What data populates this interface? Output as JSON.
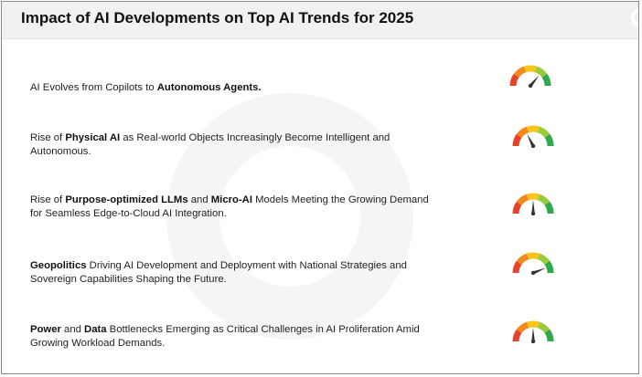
{
  "title": "Impact of AI Developments on Top AI Trends for 2025",
  "trends": [
    {
      "parts": [
        {
          "text": "AI Evolves from Copilots to ",
          "bold": false
        },
        {
          "text": "Autonomous Agents.",
          "bold": true
        }
      ],
      "gauge_level": 0.72
    },
    {
      "parts": [
        {
          "text": "Rise of ",
          "bold": false
        },
        {
          "text": "Physical AI",
          "bold": true
        },
        {
          "text": " as Real-world Objects Increasingly Become Intelligent and Autonomous.",
          "bold": false
        }
      ],
      "gauge_level": 0.35
    },
    {
      "parts": [
        {
          "text": "Rise of ",
          "bold": false
        },
        {
          "text": "Purpose-optimized LLMs",
          "bold": true
        },
        {
          "text": " and ",
          "bold": false
        },
        {
          "text": "Micro-AI",
          "bold": true
        },
        {
          "text": " Models Meeting the Growing Demand for Seamless Edge-to-Cloud AI Integration.",
          "bold": false
        }
      ],
      "gauge_level": 0.5
    },
    {
      "parts": [
        {
          "text": "Geopolitics",
          "bold": true
        },
        {
          "text": " Driving AI Development and Deployment with National Strategies and Sovereign Capabilities Shaping the Future.",
          "bold": false
        }
      ],
      "gauge_level": 0.88
    },
    {
      "parts": [
        {
          "text": "Power",
          "bold": true
        },
        {
          "text": " and ",
          "bold": false
        },
        {
          "text": "Data",
          "bold": true
        },
        {
          "text": " Bottlenecks Emerging as Critical Challenges in AI Proliferation Amid Growing Workload Demands.",
          "bold": false
        }
      ],
      "gauge_level": 0.5
    }
  ],
  "gauge_colors": [
    "#e8432a",
    "#f48a1f",
    "#f9c51c",
    "#9acb3c",
    "#2fa84f"
  ],
  "needle_color": "#333333"
}
